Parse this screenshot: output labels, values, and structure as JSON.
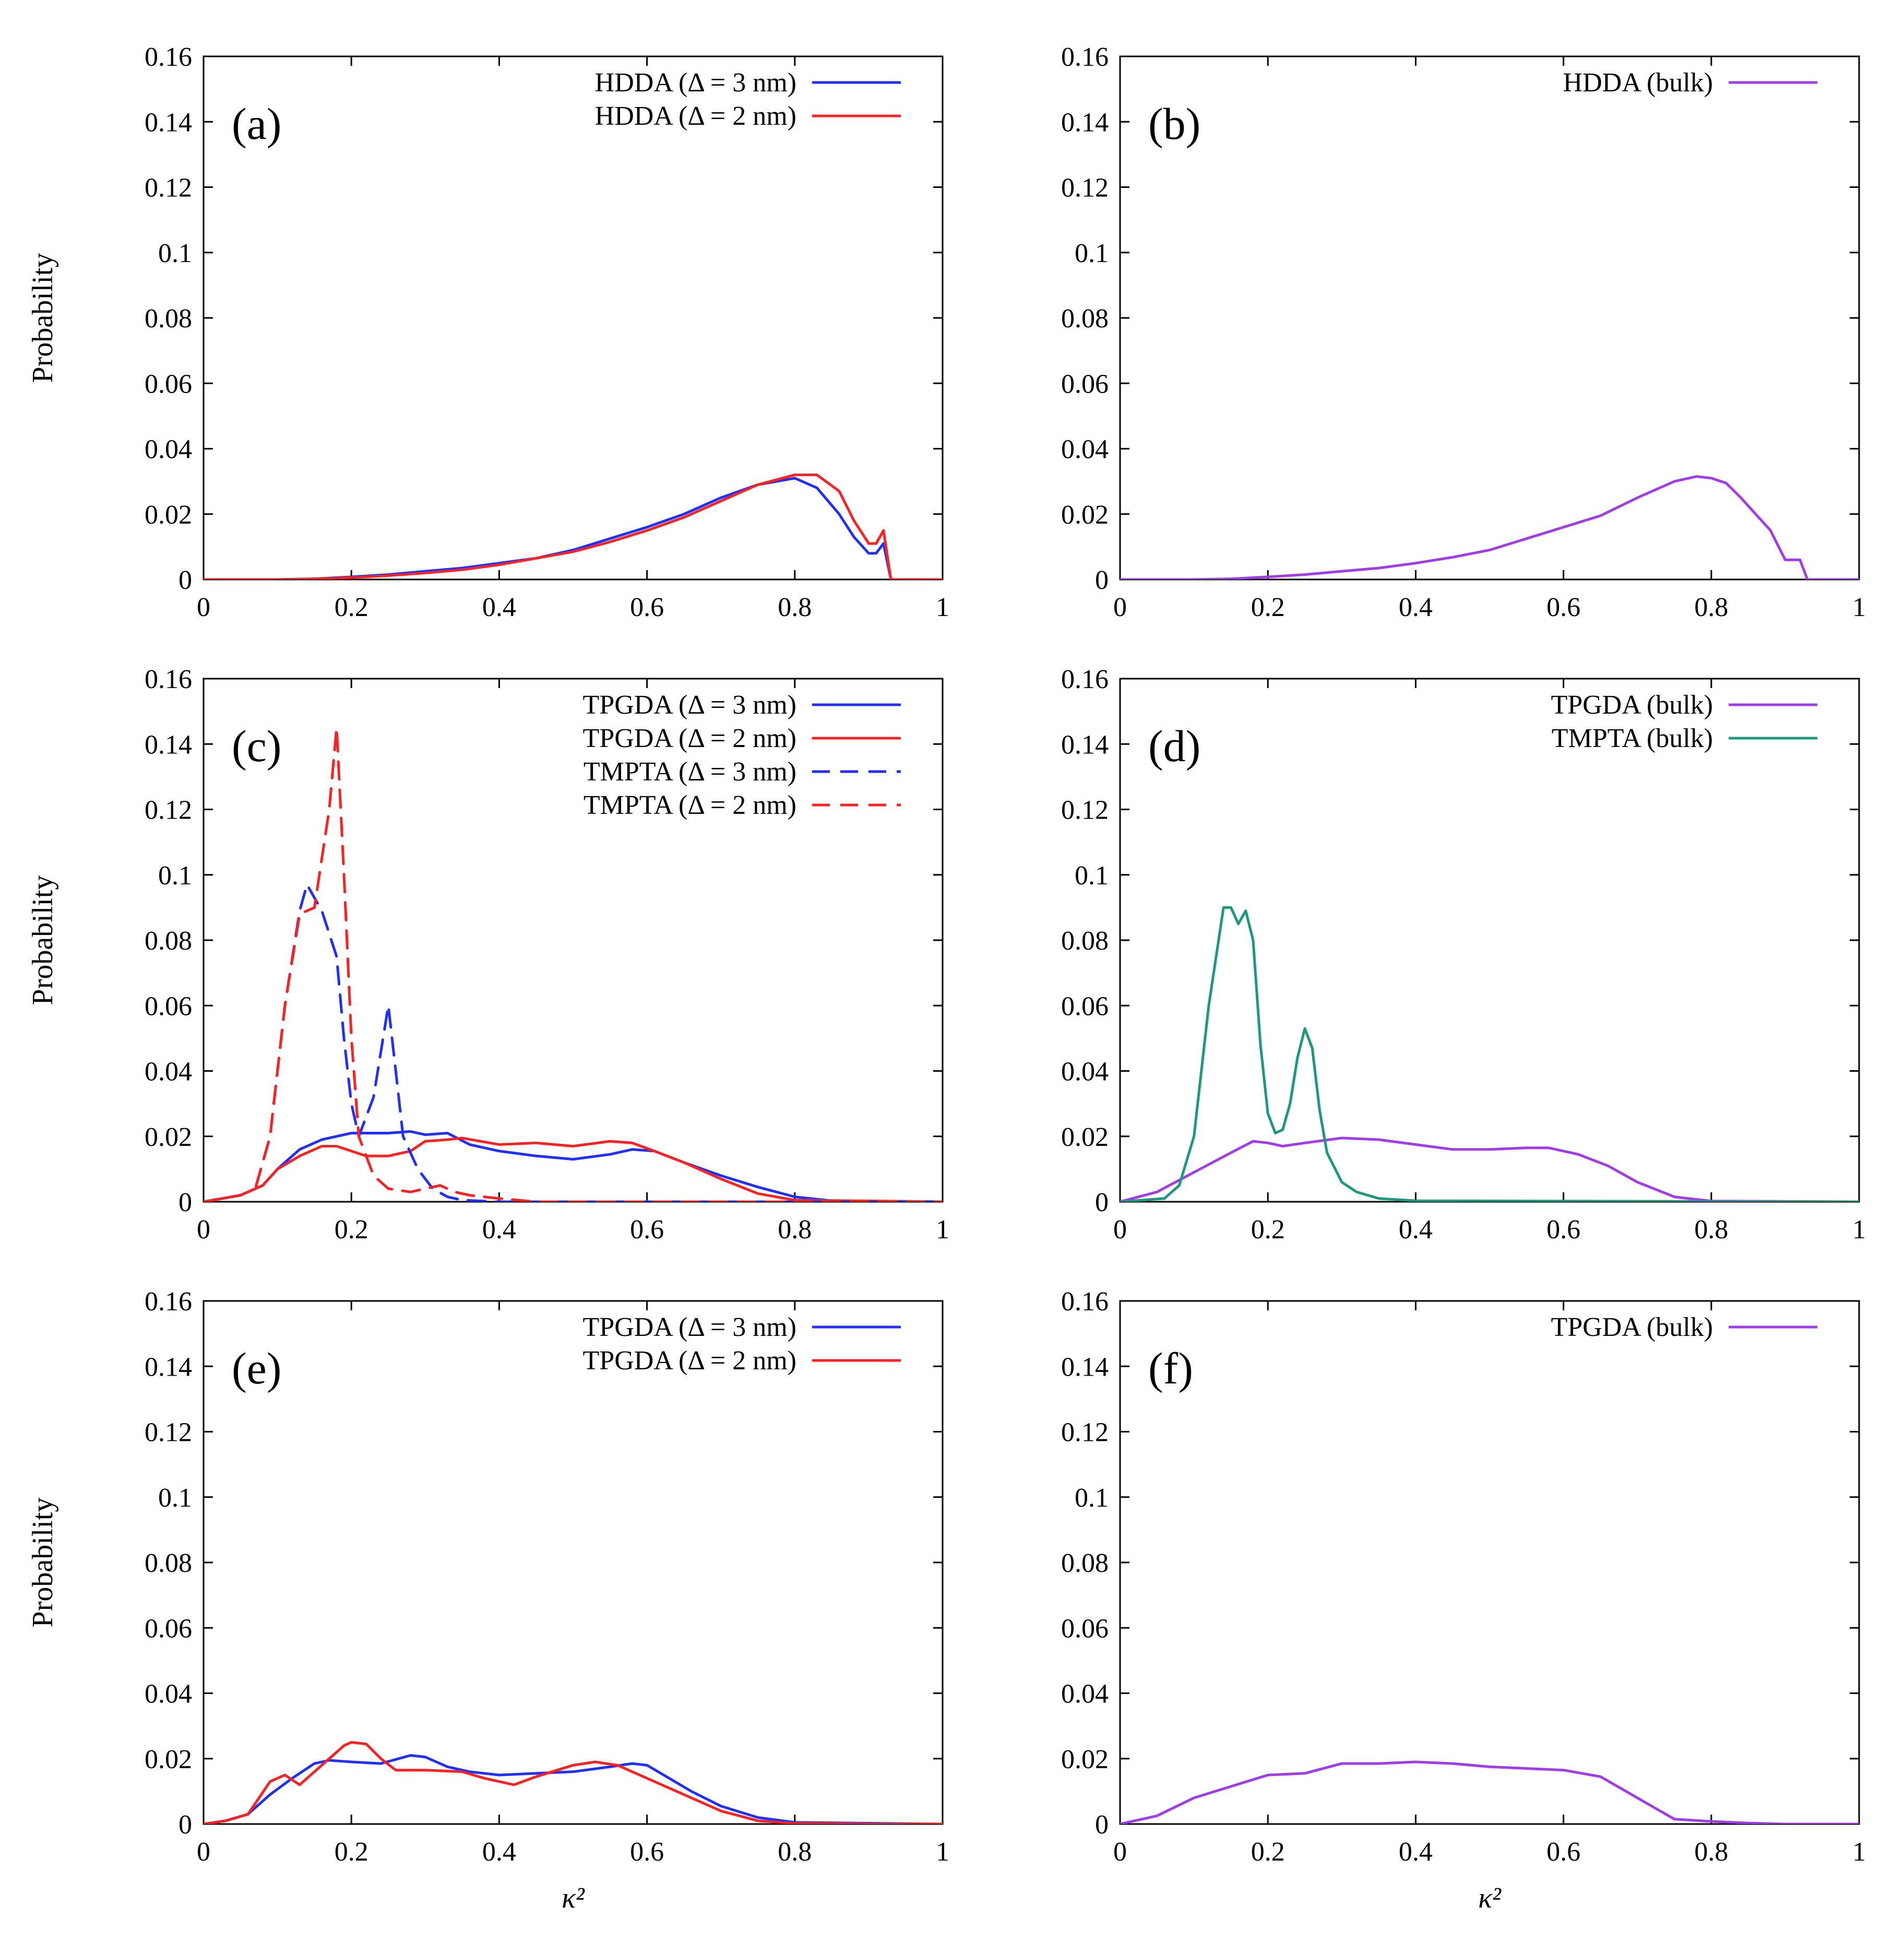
{
  "chart_data": [
    {
      "type": "line",
      "panel": "(a)",
      "xlim": [
        0,
        1
      ],
      "ylim": [
        0,
        0.16
      ],
      "xticks": [
        "0",
        "0.2",
        "0.4",
        "0.6",
        "0.8",
        "1"
      ],
      "yticks": [
        "0",
        "0.02",
        "0.04",
        "0.06",
        "0.08",
        "0.1",
        "0.12",
        "0.14",
        "0.16"
      ],
      "ylabel": "Probability",
      "xlabel": "",
      "series": [
        {
          "name": "HDDA (Δ = 3 nm)",
          "color": "#1f2fff",
          "dash": "solid",
          "x": [
            0,
            0.1,
            0.15,
            0.2,
            0.25,
            0.3,
            0.35,
            0.4,
            0.45,
            0.5,
            0.55,
            0.6,
            0.65,
            0.7,
            0.75,
            0.8,
            0.83,
            0.86,
            0.88,
            0.9,
            0.91,
            0.92,
            0.93,
            0.94,
            1
          ],
          "y": [
            0,
            0,
            0.0002,
            0.0008,
            0.0015,
            0.0025,
            0.0035,
            0.005,
            0.0065,
            0.009,
            0.0125,
            0.016,
            0.02,
            0.025,
            0.029,
            0.031,
            0.028,
            0.02,
            0.013,
            0.008,
            0.008,
            0.011,
            0,
            0,
            0
          ]
        },
        {
          "name": "HDDA (Δ = 2 nm)",
          "color": "#ff2020",
          "dash": "solid",
          "x": [
            0,
            0.1,
            0.15,
            0.2,
            0.25,
            0.3,
            0.35,
            0.4,
            0.45,
            0.5,
            0.55,
            0.6,
            0.65,
            0.7,
            0.75,
            0.8,
            0.83,
            0.86,
            0.88,
            0.9,
            0.91,
            0.92,
            0.93,
            0.94,
            1
          ],
          "y": [
            0,
            0,
            0.0002,
            0.0006,
            0.0012,
            0.002,
            0.003,
            0.0045,
            0.0065,
            0.0085,
            0.0115,
            0.015,
            0.019,
            0.024,
            0.029,
            0.032,
            0.032,
            0.027,
            0.018,
            0.011,
            0.011,
            0.015,
            0,
            0,
            0
          ]
        }
      ]
    },
    {
      "type": "line",
      "panel": "(b)",
      "xlim": [
        0,
        1
      ],
      "ylim": [
        0,
        0.16
      ],
      "xticks": [
        "0",
        "0.2",
        "0.4",
        "0.6",
        "0.8",
        "1"
      ],
      "yticks": [
        "0",
        "0.02",
        "0.04",
        "0.06",
        "0.08",
        "0.1",
        "0.12",
        "0.14",
        "0.16"
      ],
      "ylabel": "",
      "xlabel": "",
      "series": [
        {
          "name": "HDDA (bulk)",
          "color": "#a23bec",
          "dash": "solid",
          "x": [
            0,
            0.1,
            0.15,
            0.2,
            0.25,
            0.3,
            0.35,
            0.4,
            0.45,
            0.5,
            0.55,
            0.6,
            0.65,
            0.7,
            0.75,
            0.78,
            0.8,
            0.82,
            0.84,
            0.86,
            0.88,
            0.9,
            0.92,
            0.93,
            1
          ],
          "y": [
            0,
            0,
            0.0002,
            0.0008,
            0.0015,
            0.0025,
            0.0035,
            0.005,
            0.0068,
            0.009,
            0.0125,
            0.016,
            0.0195,
            0.025,
            0.03,
            0.0315,
            0.031,
            0.0295,
            0.025,
            0.02,
            0.015,
            0.006,
            0.006,
            0,
            0
          ]
        }
      ]
    },
    {
      "type": "line",
      "panel": "(c)",
      "xlim": [
        0,
        1
      ],
      "ylim": [
        0,
        0.16
      ],
      "xticks": [
        "0",
        "0.2",
        "0.4",
        "0.6",
        "0.8",
        "1"
      ],
      "yticks": [
        "0",
        "0.02",
        "0.04",
        "0.06",
        "0.08",
        "0.1",
        "0.12",
        "0.14",
        "0.16"
      ],
      "ylabel": "Probability",
      "xlabel": "",
      "series": [
        {
          "name": "TPGDA (Δ = 3 nm)",
          "color": "#1f2fff",
          "dash": "solid",
          "x": [
            0,
            0.05,
            0.08,
            0.1,
            0.13,
            0.16,
            0.2,
            0.25,
            0.28,
            0.3,
            0.33,
            0.36,
            0.4,
            0.45,
            0.5,
            0.55,
            0.58,
            0.61,
            0.65,
            0.7,
            0.75,
            0.8,
            0.85,
            1
          ],
          "y": [
            0,
            0.002,
            0.005,
            0.01,
            0.016,
            0.019,
            0.021,
            0.021,
            0.0215,
            0.0205,
            0.021,
            0.0175,
            0.0155,
            0.014,
            0.013,
            0.0145,
            0.016,
            0.0155,
            0.012,
            0.008,
            0.0045,
            0.0015,
            0.0003,
            0
          ]
        },
        {
          "name": "TPGDA (Δ = 2 nm)",
          "color": "#ff2020",
          "dash": "solid",
          "x": [
            0,
            0.05,
            0.08,
            0.1,
            0.13,
            0.16,
            0.18,
            0.2,
            0.22,
            0.25,
            0.28,
            0.3,
            0.33,
            0.35,
            0.4,
            0.45,
            0.5,
            0.55,
            0.58,
            0.61,
            0.65,
            0.7,
            0.75,
            0.8,
            1
          ],
          "y": [
            0,
            0.002,
            0.005,
            0.01,
            0.014,
            0.017,
            0.017,
            0.0155,
            0.014,
            0.014,
            0.0155,
            0.0185,
            0.019,
            0.0195,
            0.0175,
            0.018,
            0.017,
            0.0185,
            0.018,
            0.0155,
            0.012,
            0.007,
            0.0025,
            0.0005,
            0
          ]
        },
        {
          "name": "TMPTA (Δ = 3 nm)",
          "color": "#1f2fff",
          "dash": "dashed",
          "x": [
            0,
            0.05,
            0.07,
            0.09,
            0.11,
            0.13,
            0.14,
            0.16,
            0.18,
            0.19,
            0.2,
            0.21,
            0.23,
            0.25,
            0.26,
            0.27,
            0.29,
            0.31,
            0.33,
            0.35,
            0.4,
            1
          ],
          "y": [
            0,
            0.002,
            0.004,
            0.02,
            0.06,
            0.089,
            0.097,
            0.089,
            0.075,
            0.05,
            0.03,
            0.02,
            0.032,
            0.06,
            0.04,
            0.02,
            0.01,
            0.004,
            0.0015,
            0.0005,
            0,
            0
          ]
        },
        {
          "name": "TMPTA (Δ = 2 nm)",
          "color": "#ff2020",
          "dash": "dashed",
          "x": [
            0,
            0.05,
            0.07,
            0.09,
            0.11,
            0.13,
            0.15,
            0.17,
            0.18,
            0.19,
            0.2,
            0.21,
            0.23,
            0.25,
            0.28,
            0.3,
            0.32,
            0.34,
            0.36,
            0.4,
            0.45,
            1
          ],
          "y": [
            0,
            0.002,
            0.004,
            0.02,
            0.06,
            0.088,
            0.09,
            0.12,
            0.145,
            0.1,
            0.05,
            0.02,
            0.008,
            0.004,
            0.003,
            0.004,
            0.005,
            0.003,
            0.002,
            0.001,
            0,
            0
          ]
        }
      ]
    },
    {
      "type": "line",
      "panel": "(d)",
      "xlim": [
        0,
        1
      ],
      "ylim": [
        0,
        0.16
      ],
      "xticks": [
        "0",
        "0.2",
        "0.4",
        "0.6",
        "0.8",
        "1"
      ],
      "yticks": [
        "0",
        "0.02",
        "0.04",
        "0.06",
        "0.08",
        "0.1",
        "0.12",
        "0.14",
        "0.16"
      ],
      "ylabel": "",
      "xlabel": "",
      "series": [
        {
          "name": "TPGDA (bulk)",
          "color": "#a23bec",
          "dash": "solid",
          "x": [
            0,
            0.05,
            0.1,
            0.15,
            0.18,
            0.2,
            0.22,
            0.25,
            0.3,
            0.35,
            0.4,
            0.45,
            0.5,
            0.55,
            0.58,
            0.62,
            0.66,
            0.7,
            0.75,
            0.8,
            1
          ],
          "y": [
            0,
            0.003,
            0.009,
            0.015,
            0.0185,
            0.018,
            0.017,
            0.018,
            0.0195,
            0.019,
            0.0175,
            0.016,
            0.016,
            0.0165,
            0.0165,
            0.0145,
            0.011,
            0.006,
            0.0015,
            0.0002,
            0
          ]
        },
        {
          "name": "TMPTA (bulk)",
          "color": "#1a9a7c",
          "dash": "solid",
          "x": [
            0,
            0.06,
            0.08,
            0.1,
            0.12,
            0.14,
            0.15,
            0.16,
            0.17,
            0.18,
            0.19,
            0.2,
            0.21,
            0.22,
            0.23,
            0.24,
            0.25,
            0.26,
            0.27,
            0.28,
            0.3,
            0.32,
            0.35,
            0.4,
            1
          ],
          "y": [
            0,
            0.001,
            0.005,
            0.02,
            0.06,
            0.09,
            0.09,
            0.085,
            0.089,
            0.08,
            0.048,
            0.027,
            0.021,
            0.022,
            0.03,
            0.044,
            0.053,
            0.047,
            0.028,
            0.015,
            0.006,
            0.003,
            0.001,
            0.0003,
            0
          ]
        }
      ]
    },
    {
      "type": "line",
      "panel": "(e)",
      "xlim": [
        0,
        1
      ],
      "ylim": [
        0,
        0.16
      ],
      "xticks": [
        "0",
        "0.2",
        "0.4",
        "0.6",
        "0.8",
        "1"
      ],
      "yticks": [
        "0",
        "0.02",
        "0.04",
        "0.06",
        "0.08",
        "0.1",
        "0.12",
        "0.14",
        "0.16"
      ],
      "ylabel": "Probability",
      "xlabel": "κ²",
      "series": [
        {
          "name": "TPGDA (Δ = 3 nm)",
          "color": "#1f2fff",
          "dash": "solid",
          "x": [
            0,
            0.03,
            0.06,
            0.09,
            0.12,
            0.15,
            0.17,
            0.2,
            0.24,
            0.28,
            0.3,
            0.33,
            0.36,
            0.4,
            0.45,
            0.5,
            0.55,
            0.58,
            0.6,
            0.63,
            0.66,
            0.7,
            0.75,
            0.8,
            1
          ],
          "y": [
            0,
            0.001,
            0.003,
            0.009,
            0.014,
            0.0185,
            0.0195,
            0.019,
            0.0185,
            0.021,
            0.0205,
            0.0175,
            0.016,
            0.015,
            0.0155,
            0.016,
            0.0175,
            0.0185,
            0.018,
            0.014,
            0.01,
            0.0055,
            0.002,
            0.0005,
            0
          ]
        },
        {
          "name": "TPGDA (Δ = 2 nm)",
          "color": "#ff2020",
          "dash": "solid",
          "x": [
            0,
            0.03,
            0.06,
            0.09,
            0.11,
            0.13,
            0.15,
            0.17,
            0.19,
            0.2,
            0.22,
            0.24,
            0.26,
            0.3,
            0.35,
            0.38,
            0.42,
            0.45,
            0.5,
            0.53,
            0.56,
            0.6,
            0.63,
            0.66,
            0.7,
            0.75,
            0.8,
            1
          ],
          "y": [
            0,
            0.001,
            0.003,
            0.013,
            0.015,
            0.012,
            0.016,
            0.02,
            0.024,
            0.025,
            0.0245,
            0.02,
            0.0165,
            0.0165,
            0.016,
            0.014,
            0.012,
            0.0145,
            0.018,
            0.019,
            0.018,
            0.014,
            0.011,
            0.008,
            0.004,
            0.001,
            0.0002,
            0
          ]
        }
      ]
    },
    {
      "type": "line",
      "panel": "(f)",
      "xlim": [
        0,
        1
      ],
      "ylim": [
        0,
        0.16
      ],
      "xticks": [
        "0",
        "0.2",
        "0.4",
        "0.6",
        "0.8",
        "1"
      ],
      "yticks": [
        "0",
        "0.02",
        "0.04",
        "0.06",
        "0.08",
        "0.1",
        "0.12",
        "0.14",
        "0.16"
      ],
      "ylabel": "",
      "xlabel": "κ²",
      "series": [
        {
          "name": "TPGDA (bulk)",
          "color": "#a23bec",
          "dash": "solid",
          "x": [
            0,
            0.05,
            0.1,
            0.15,
            0.2,
            0.25,
            0.3,
            0.35,
            0.4,
            0.45,
            0.5,
            0.55,
            0.6,
            0.65,
            0.7,
            0.75,
            0.8,
            0.85,
            0.9,
            1
          ],
          "y": [
            0,
            0.0025,
            0.008,
            0.0115,
            0.015,
            0.0155,
            0.0185,
            0.0185,
            0.019,
            0.0185,
            0.0175,
            0.017,
            0.0165,
            0.0145,
            0.008,
            0.0015,
            0.0008,
            0.0003,
            0,
            0
          ]
        }
      ]
    }
  ]
}
